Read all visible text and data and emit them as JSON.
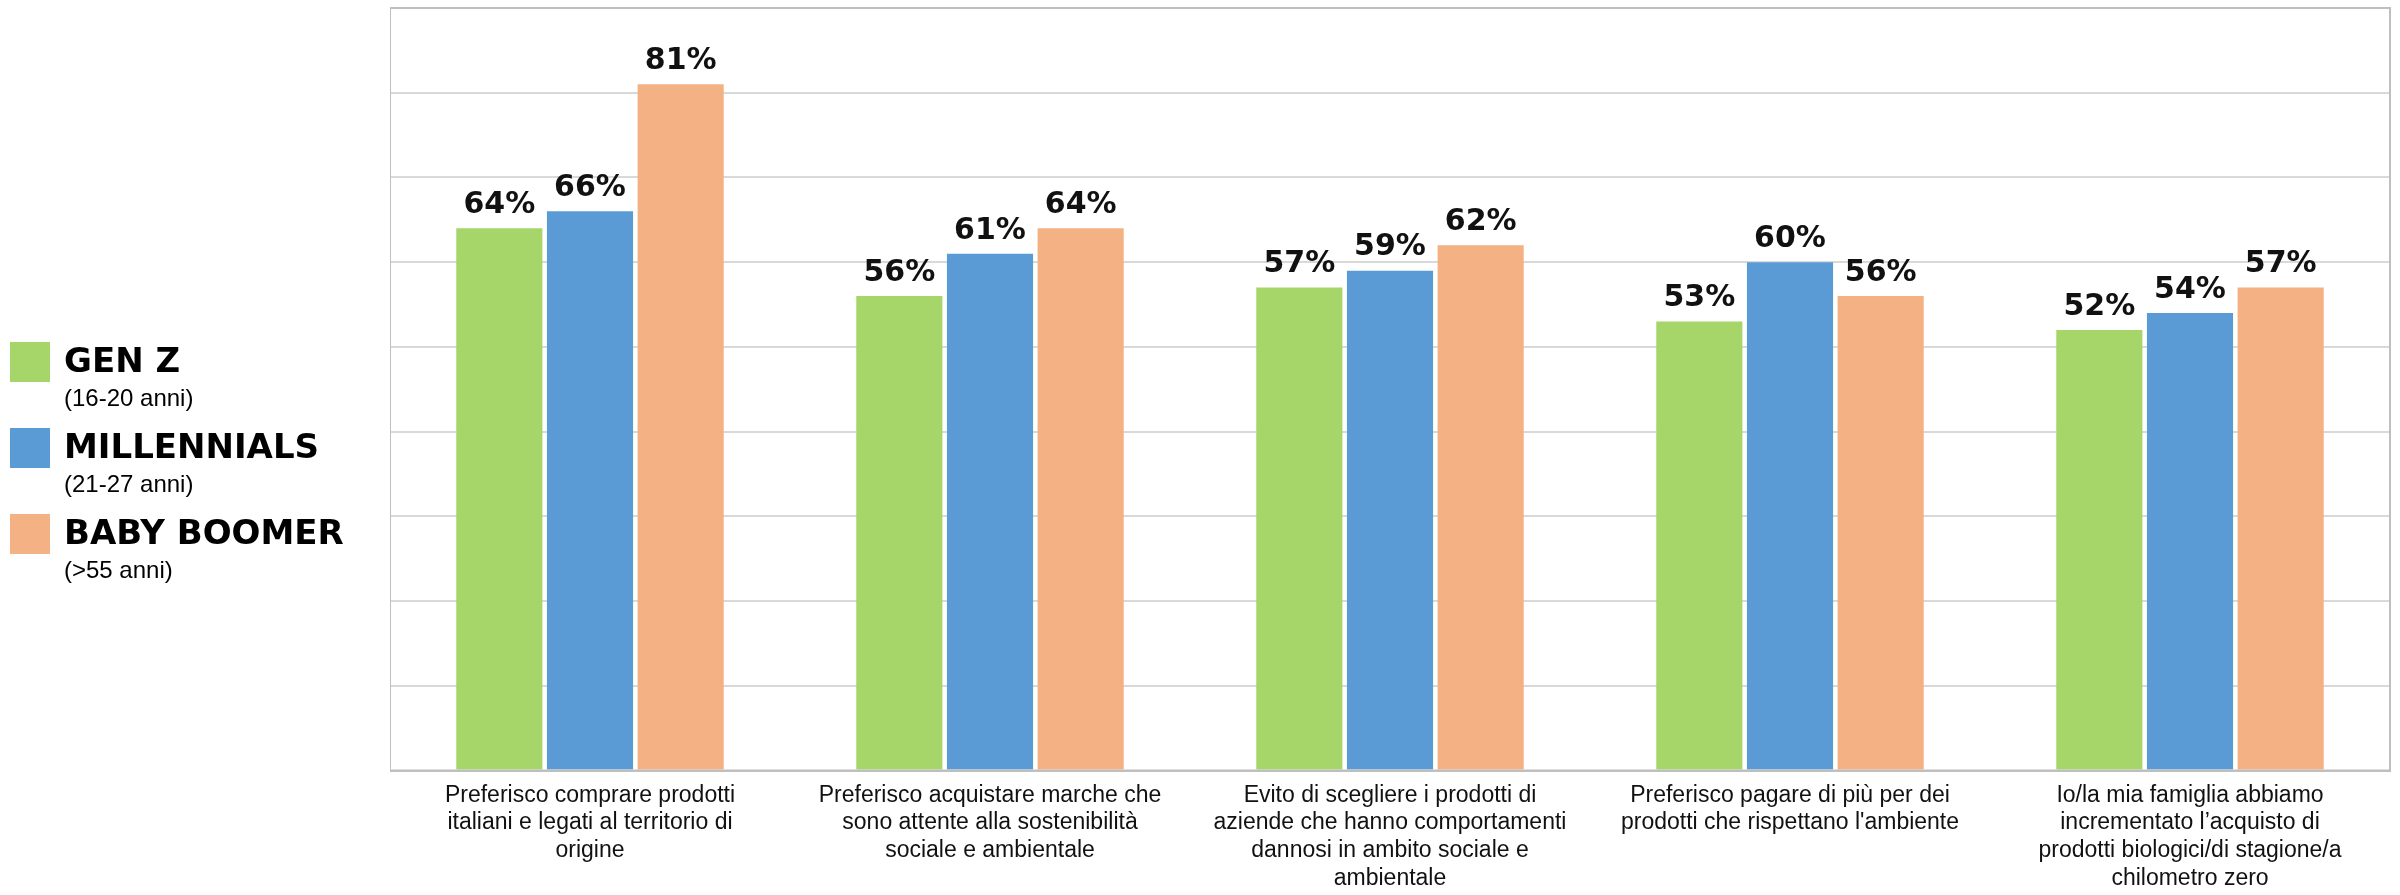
{
  "chart_data": {
    "type": "bar",
    "categories": [
      "Preferisco comprare prodotti italiani e legati al territorio di origine",
      "Preferisco acquistare marche che sono attente alla sostenibilità sociale e ambientale",
      "Evito di scegliere i prodotti di aziende che hanno comportamenti dannosi in ambito sociale e ambientale",
      "Preferisco pagare di più per dei prodotti che rispettano l'ambiente",
      "Io/la mia famiglia abbiamo incrementato l’acquisto di prodotti biologici/di stagione/a chilometro zero"
    ],
    "series": [
      {
        "name": "GEN Z\n(16-20 anni)",
        "color": "#a6d66a",
        "values": [
          64,
          56,
          57,
          53,
          52
        ],
        "value_labels": [
          "64%",
          "56%",
          "57%",
          "53%",
          "52%"
        ]
      },
      {
        "name": "MILLENNIALS\n(21-27 anni)",
        "color": "#5b9bd5",
        "values": [
          66,
          61,
          59,
          60,
          54
        ],
        "value_labels": [
          "66%",
          "61%",
          "59%",
          "60%",
          "54%"
        ]
      },
      {
        "name": "BABY BOOMER\n(>55 anni)",
        "color": "#f4b183",
        "values": [
          81,
          64,
          62,
          56,
          57
        ],
        "value_labels": [
          "81%",
          "64%",
          "62%",
          "56%",
          "57%"
        ]
      }
    ],
    "tick_labels": "x",
    "grid": "y",
    "legend": "left"
  }
}
